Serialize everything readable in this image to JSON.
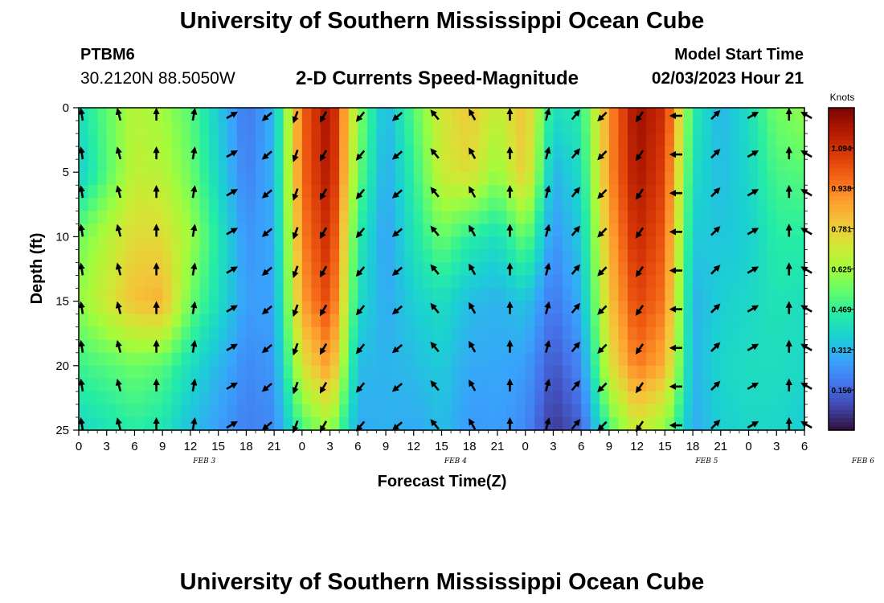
{
  "header": {
    "title": "University of Southern Mississippi Ocean Cube",
    "station": "PTBM6",
    "coords": "30.2120N  88.5050W",
    "subtitle": "2-D Currents Speed-Magnitude",
    "model_start_label": "Model Start Time",
    "model_start_value": "02/03/2023 Hour 21"
  },
  "footer": {
    "title": "University of Southern Mississippi Ocean Cube"
  },
  "chart_data": {
    "type": "heatmap",
    "title": "2-D Currents Speed-Magnitude",
    "xlabel": "Forecast Time(Z)",
    "ylabel": "Depth (ft)",
    "x_tick_labels": [
      "0",
      "3",
      "6",
      "9",
      "12",
      "15",
      "18",
      "21",
      "0",
      "3",
      "6",
      "9",
      "12",
      "15",
      "18",
      "21",
      "0",
      "3",
      "6",
      "9",
      "12",
      "15",
      "18",
      "21",
      "0",
      "3",
      "6"
    ],
    "date_labels": [
      {
        "text": "FEB 3",
        "tick_index": 4.5
      },
      {
        "text": "FEB 4",
        "tick_index": 13.5
      },
      {
        "text": "FEB 5",
        "tick_index": 22.5
      },
      {
        "text": "FEB 6",
        "tick_index": 28.1
      }
    ],
    "y_ticks": [
      0,
      5,
      10,
      15,
      20,
      25
    ],
    "ylim": [
      0,
      25
    ],
    "colorbar": {
      "label": "Knots",
      "ticks": [
        "1.094",
        "0.938",
        "0.781",
        "0.625",
        "0.469",
        "0.312",
        "0.156"
      ],
      "tick_values": [
        1.094,
        0.938,
        0.781,
        0.625,
        0.469,
        0.312,
        0.156
      ],
      "range": [
        0.0,
        1.25
      ],
      "colors": [
        "#30123b",
        "#4145ab",
        "#4675ed",
        "#39a2fc",
        "#1bcfd4",
        "#24eca6",
        "#61fc6c",
        "#a4fc3b",
        "#d1e834",
        "#f3c63a",
        "#fe9b2d",
        "#f36315",
        "#d93806",
        "#b11901",
        "#7a0402"
      ]
    },
    "speed_profiles": [
      {
        "hour": 0,
        "depths": [
          0,
          5,
          10,
          15,
          20,
          25
        ],
        "speed": [
          0.4,
          0.35,
          0.55,
          0.6,
          0.48,
          0.38
        ]
      },
      {
        "hour": 6,
        "depths": [
          0,
          5,
          10,
          15,
          20,
          25
        ],
        "speed": [
          0.66,
          0.68,
          0.76,
          0.82,
          0.55,
          0.45
        ]
      },
      {
        "hour": 9,
        "depths": [
          0,
          5,
          10,
          15,
          20,
          25
        ],
        "speed": [
          0.62,
          0.66,
          0.75,
          0.85,
          0.52,
          0.42
        ]
      },
      {
        "hour": 12,
        "depths": [
          0,
          5,
          10,
          15,
          20,
          25
        ],
        "speed": [
          0.52,
          0.55,
          0.62,
          0.55,
          0.4,
          0.32
        ]
      },
      {
        "hour": 18,
        "depths": [
          0,
          5,
          10,
          15,
          20,
          25
        ],
        "speed": [
          0.18,
          0.2,
          0.24,
          0.26,
          0.22,
          0.2
        ]
      },
      {
        "hour": 21,
        "depths": [
          0,
          5,
          10,
          15,
          20,
          25
        ],
        "speed": [
          0.3,
          0.3,
          0.28,
          0.27,
          0.25,
          0.22
        ]
      },
      {
        "hour": 24,
        "depths": [
          0,
          5,
          10,
          15,
          20,
          25
        ],
        "speed": [
          0.98,
          0.97,
          0.93,
          0.88,
          0.72,
          0.5
        ]
      },
      {
        "hour": 27,
        "depths": [
          0,
          5,
          10,
          15,
          20,
          25
        ],
        "speed": [
          1.2,
          1.18,
          1.12,
          1.05,
          0.9,
          0.62
        ]
      },
      {
        "hour": 30,
        "depths": [
          0,
          5,
          10,
          15,
          20,
          25
        ],
        "speed": [
          0.6,
          0.55,
          0.45,
          0.4,
          0.32,
          0.28
        ]
      },
      {
        "hour": 33,
        "depths": [
          0,
          5,
          10,
          15,
          20,
          25
        ],
        "speed": [
          0.3,
          0.28,
          0.26,
          0.28,
          0.3,
          0.3
        ]
      },
      {
        "hour": 36,
        "depths": [
          0,
          5,
          10,
          15,
          20,
          25
        ],
        "speed": [
          0.52,
          0.46,
          0.42,
          0.36,
          0.32,
          0.28
        ]
      },
      {
        "hour": 39,
        "depths": [
          0,
          5,
          10,
          15,
          20,
          25
        ],
        "speed": [
          0.72,
          0.7,
          0.55,
          0.4,
          0.35,
          0.32
        ]
      },
      {
        "hour": 42,
        "depths": [
          0,
          5,
          10,
          15,
          20,
          25
        ],
        "speed": [
          0.8,
          0.75,
          0.45,
          0.32,
          0.28,
          0.25
        ]
      },
      {
        "hour": 45,
        "depths": [
          0,
          5,
          10,
          15,
          20,
          25
        ],
        "speed": [
          0.68,
          0.6,
          0.4,
          0.3,
          0.28,
          0.26
        ]
      },
      {
        "hour": 48,
        "depths": [
          0,
          5,
          10,
          15,
          20,
          25
        ],
        "speed": [
          0.82,
          0.8,
          0.55,
          0.34,
          0.26,
          0.22
        ]
      },
      {
        "hour": 51,
        "depths": [
          0,
          5,
          10,
          15,
          20,
          25
        ],
        "speed": [
          0.4,
          0.3,
          0.24,
          0.18,
          0.12,
          0.06
        ]
      },
      {
        "hour": 54,
        "depths": [
          0,
          5,
          10,
          15,
          20,
          25
        ],
        "speed": [
          0.45,
          0.4,
          0.35,
          0.3,
          0.22,
          0.14
        ]
      },
      {
        "hour": 57,
        "depths": [
          0,
          5,
          10,
          15,
          20,
          25
        ],
        "speed": [
          0.9,
          0.9,
          0.85,
          0.8,
          0.72,
          0.5
        ]
      },
      {
        "hour": 60,
        "depths": [
          0,
          5,
          10,
          15,
          20,
          25
        ],
        "speed": [
          1.2,
          1.18,
          1.12,
          1.05,
          0.95,
          0.7
        ]
      },
      {
        "hour": 63,
        "depths": [
          0,
          5,
          10,
          15,
          20,
          25
        ],
        "speed": [
          1.1,
          1.05,
          1.0,
          0.95,
          0.85,
          0.6
        ]
      },
      {
        "hour": 66,
        "depths": [
          0,
          5,
          10,
          15,
          20,
          25
        ],
        "speed": [
          0.45,
          0.4,
          0.35,
          0.3,
          0.3,
          0.28
        ]
      },
      {
        "hour": 69,
        "depths": [
          0,
          5,
          10,
          15,
          20,
          25
        ],
        "speed": [
          0.3,
          0.32,
          0.34,
          0.36,
          0.38,
          0.36
        ]
      },
      {
        "hour": 72,
        "depths": [
          0,
          5,
          10,
          15,
          20,
          25
        ],
        "speed": [
          0.4,
          0.38,
          0.36,
          0.38,
          0.4,
          0.38
        ]
      },
      {
        "hour": 75,
        "depths": [
          0,
          5,
          10,
          15,
          20,
          25
        ],
        "speed": [
          0.56,
          0.5,
          0.45,
          0.42,
          0.4,
          0.38
        ]
      },
      {
        "hour": 78,
        "depths": [
          0,
          5,
          10,
          15,
          20,
          25
        ],
        "speed": [
          0.6,
          0.52,
          0.45,
          0.4,
          0.38,
          0.35
        ]
      }
    ],
    "vector_grid": {
      "hours": [
        0,
        4,
        8,
        12,
        16,
        20,
        23,
        26,
        30,
        34,
        38,
        42,
        46,
        50,
        53,
        56,
        60,
        64,
        68,
        72,
        76,
        78
      ],
      "depths": [
        0,
        3,
        6,
        9,
        12,
        15,
        18,
        21,
        24
      ],
      "note": "arrows show current direction; upward in most columns, downward/southward near hours 23-30 and 53-60"
    },
    "arrow_directions_deg": {
      "0": 350,
      "4": 345,
      "8": 0,
      "12": 10,
      "16": 60,
      "20": 230,
      "23": 200,
      "26": 210,
      "30": 220,
      "34": 230,
      "38": 320,
      "42": 330,
      "46": 0,
      "50": 15,
      "53": 40,
      "56": 225,
      "60": 215,
      "64": 270,
      "68": 45,
      "72": 60,
      "76": 0,
      "78": 300
    }
  }
}
